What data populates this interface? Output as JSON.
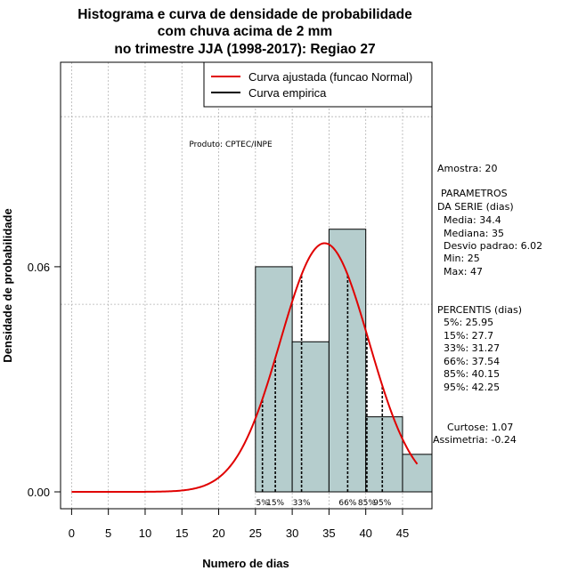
{
  "chart_data": {
    "type": "histogram",
    "title": [
      "Histograma e curva de densidade de probabilidade",
      "com chuva acima de 2 mm",
      "no trimestre JJA (1998-2017): Regiao 27"
    ],
    "xlabel": "Numero de dias",
    "ylabel": "Densidade de probabilidade",
    "xlim": [
      -1.5,
      49
    ],
    "ylim": [
      -0.0045,
      0.1145
    ],
    "x_ticks": [
      0,
      5,
      10,
      15,
      20,
      25,
      30,
      35,
      40,
      45
    ],
    "y_ticks": [
      0.0,
      0.06
    ],
    "y_tick_labels": [
      "0.00",
      "0.06"
    ],
    "grid_x": [
      0,
      5,
      10,
      15,
      20,
      25,
      30,
      35,
      40,
      45
    ],
    "grid_y": [
      0.05,
      0.1
    ],
    "bars": [
      {
        "x0": 25,
        "x1": 30,
        "density": 0.06
      },
      {
        "x0": 30,
        "x1": 35,
        "density": 0.04
      },
      {
        "x0": 35,
        "x1": 40,
        "density": 0.07
      },
      {
        "x0": 40,
        "x1": 45,
        "density": 0.02
      },
      {
        "x0": 45,
        "x1": 50,
        "density": 0.01
      }
    ],
    "bar_color": "#b5cdcd",
    "fitted_curve": {
      "name": "Curva ajustada (funcao Normal)",
      "mean": 34.4,
      "sd": 6.02,
      "x_from": 0,
      "x_to": 47,
      "color": "#e00000"
    },
    "empirical_curve": {
      "name": "Curva empirica",
      "color": "#000000"
    },
    "percentile_lines": [
      {
        "label": "5%",
        "value": 25.95
      },
      {
        "label": "15%",
        "value": 27.7
      },
      {
        "label": "33%",
        "value": 31.27
      },
      {
        "label": "66%",
        "value": 37.54
      },
      {
        "label": "85%",
        "value": 40.15
      },
      {
        "label": "95%",
        "value": 42.25
      }
    ],
    "legend": {
      "position": "top-right",
      "entries": [
        "Curva ajustada (funcao Normal)",
        "Curva empirica"
      ]
    },
    "annotation": "Produto: CPTEC/INPE",
    "side_panel": {
      "amostra": "Amostra: 20",
      "param_title_1": "PARAMETROS",
      "param_title_2": "DA SERIE (dias)",
      "media": "Media: 34.4",
      "mediana": "Mediana: 35",
      "desvio": "Desvio padrao: 6.02",
      "min": "Min: 25",
      "max": "Max: 47",
      "perc_title": "PERCENTIS (dias)",
      "p5": "5%: 25.95",
      "p15": "15%: 27.7",
      "p33": "33%: 31.27",
      "p66": "66%: 37.54",
      "p85": "85%: 40.15",
      "p95": "95%: 42.25",
      "curtose": "Curtose: 1.07",
      "assimetria": "Assimetria: -0.24"
    }
  }
}
